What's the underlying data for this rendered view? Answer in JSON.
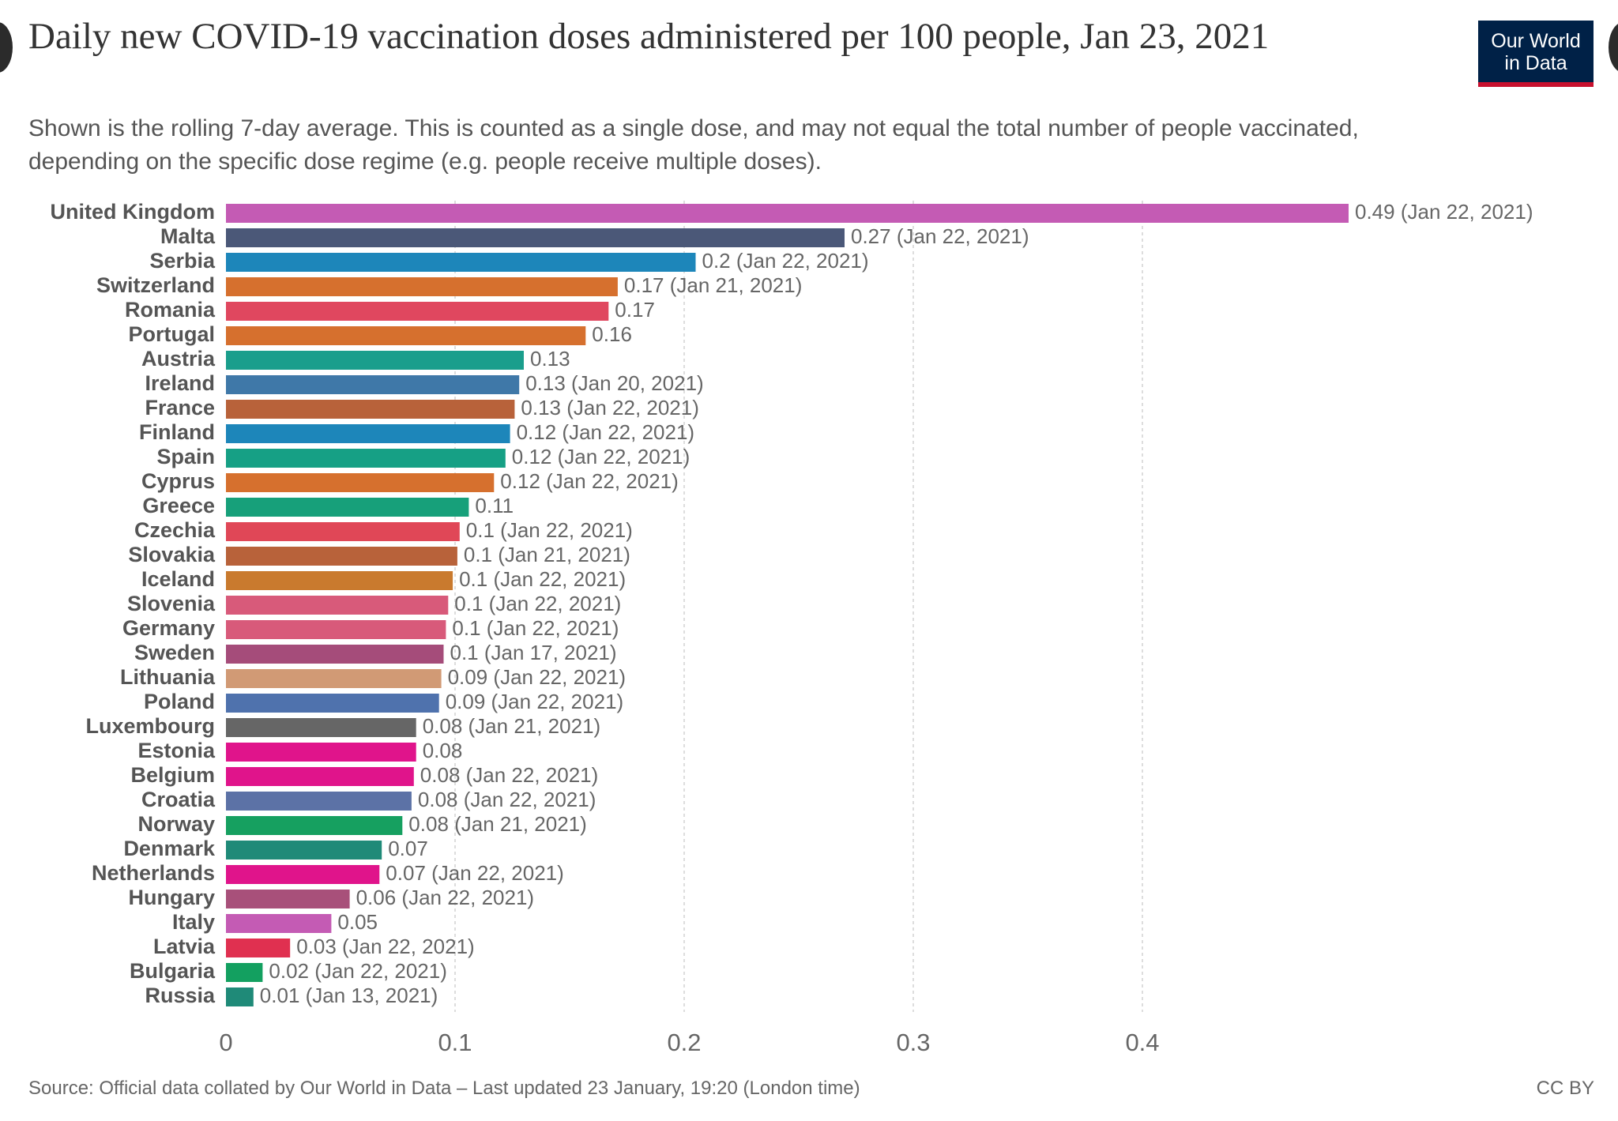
{
  "title": "Daily new COVID-19 vaccination doses administered per 100 people, Jan 23, 2021",
  "subtitle": "Shown is the rolling 7-day average. This is counted as a single dose, and may not equal the total number of people vaccinated, depending on the specific dose regime (e.g. people receive multiple doses).",
  "logo": {
    "line1": "Our World",
    "line2": "in Data",
    "bg": "#002147",
    "accent": "#c8102e"
  },
  "source": "Source: Official data collated by Our World in Data – Last updated 23 January, 19:20 (London time)",
  "license": "CC BY",
  "chart_data": {
    "type": "bar",
    "orientation": "horizontal",
    "xlim": [
      0,
      0.49
    ],
    "xticks": [
      "0",
      "0.1",
      "0.2",
      "0.3",
      "0.4"
    ],
    "grid": true,
    "categories": [
      "United Kingdom",
      "Malta",
      "Serbia",
      "Switzerland",
      "Romania",
      "Portugal",
      "Austria",
      "Ireland",
      "France",
      "Finland",
      "Spain",
      "Cyprus",
      "Greece",
      "Czechia",
      "Slovakia",
      "Iceland",
      "Slovenia",
      "Germany",
      "Sweden",
      "Lithuania",
      "Poland",
      "Luxembourg",
      "Estonia",
      "Belgium",
      "Croatia",
      "Norway",
      "Denmark",
      "Netherlands",
      "Hungary",
      "Italy",
      "Latvia",
      "Bulgaria",
      "Russia"
    ],
    "values": [
      0.49,
      0.27,
      0.205,
      0.171,
      0.167,
      0.157,
      0.13,
      0.128,
      0.126,
      0.124,
      0.122,
      0.117,
      0.106,
      0.102,
      0.101,
      0.099,
      0.097,
      0.096,
      0.095,
      0.094,
      0.093,
      0.083,
      0.083,
      0.082,
      0.081,
      0.077,
      0.068,
      0.067,
      0.054,
      0.046,
      0.028,
      0.016,
      0.012
    ],
    "labels": [
      "0.49 (Jan 22, 2021)",
      "0.27 (Jan 22, 2021)",
      "0.2 (Jan 22, 2021)",
      "0.17 (Jan 21, 2021)",
      "0.17",
      "0.16",
      "0.13",
      "0.13 (Jan 20, 2021)",
      "0.13 (Jan 22, 2021)",
      "0.12 (Jan 22, 2021)",
      "0.12 (Jan 22, 2021)",
      "0.12 (Jan 22, 2021)",
      "0.11",
      "0.1 (Jan 22, 2021)",
      "0.1 (Jan 21, 2021)",
      "0.1 (Jan 22, 2021)",
      "0.1 (Jan 22, 2021)",
      "0.1 (Jan 22, 2021)",
      "0.1 (Jan 17, 2021)",
      "0.09 (Jan 22, 2021)",
      "0.09 (Jan 22, 2021)",
      "0.08 (Jan 21, 2021)",
      "0.08",
      "0.08 (Jan 22, 2021)",
      "0.08 (Jan 22, 2021)",
      "0.08 (Jan 21, 2021)",
      "0.07",
      "0.07 (Jan 22, 2021)",
      "0.06 (Jan 22, 2021)",
      "0.05",
      "0.03 (Jan 22, 2021)",
      "0.02 (Jan 22, 2021)",
      "0.01 (Jan 13, 2021)"
    ],
    "colors": [
      "#c45bb4",
      "#4b5878",
      "#1d86ba",
      "#d6702e",
      "#e0475f",
      "#d6702e",
      "#1a9e8c",
      "#3f78a8",
      "#b8623a",
      "#1d86ba",
      "#16a085",
      "#d6702e",
      "#17a07a",
      "#e04757",
      "#b8623a",
      "#c97a2e",
      "#d85a7a",
      "#d85a7a",
      "#a54c7a",
      "#d19a75",
      "#4f72ad",
      "#666666",
      "#e0148b",
      "#e0148b",
      "#5c72a6",
      "#16a060",
      "#1f8a78",
      "#e0148b",
      "#a8507a",
      "#c45bb4",
      "#e03050",
      "#13a060",
      "#1f8a78"
    ]
  }
}
